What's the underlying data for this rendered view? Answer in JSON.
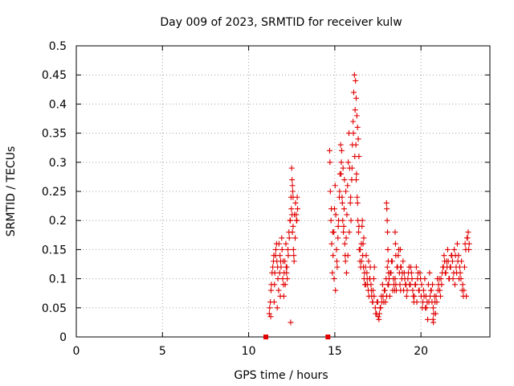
{
  "chart_data": {
    "type": "scatter",
    "title": "Day 009 of 2023, SRMTID for receiver kulw",
    "xlabel": "GPS time / hours",
    "ylabel": "SRMTID / TECUs",
    "xlim": [
      0,
      24
    ],
    "ylim": [
      0,
      0.5
    ],
    "xticks": [
      0,
      5,
      10,
      15,
      20
    ],
    "xtick_labels": [
      "0",
      "5",
      "10",
      "15",
      "20"
    ],
    "yticks": [
      0,
      0.05,
      0.1,
      0.15,
      0.2,
      0.25,
      0.3,
      0.35,
      0.4,
      0.45,
      0.5
    ],
    "ytick_labels": [
      "0",
      "0.05",
      "0.1",
      "0.15",
      "0.2",
      "0.25",
      "0.3",
      "0.35",
      "0.4",
      "0.45",
      "0.5"
    ],
    "grid": true,
    "marker": "plus",
    "color": "#e00000",
    "gap_markers": [
      [
        11.0,
        0.0
      ],
      [
        14.6,
        0.0
      ]
    ],
    "series": [
      {
        "name": "SRMTID",
        "x": [
          11.2,
          11.26,
          11.32,
          11.4,
          11.46,
          11.52,
          11.58,
          11.64,
          11.7,
          11.76,
          11.82,
          11.88,
          11.94,
          12.0,
          12.06,
          12.12,
          12.18,
          12.24,
          12.3,
          12.36,
          12.42,
          12.48,
          12.54,
          12.6,
          12.66,
          12.72,
          12.78,
          12.84,
          11.22,
          11.3,
          11.36,
          11.44,
          11.5,
          11.56,
          11.62,
          11.68,
          11.74,
          11.8,
          11.86,
          11.92,
          11.98,
          12.04,
          12.1,
          12.16,
          12.22,
          12.28,
          12.34,
          12.4,
          12.46,
          12.52,
          12.58,
          12.64,
          12.7,
          12.76,
          12.82,
          11.28,
          11.48,
          11.66,
          11.84,
          12.02,
          12.2,
          12.44,
          12.62,
          12.8,
          14.7,
          14.74,
          14.78,
          14.82,
          14.86,
          14.9,
          14.94,
          14.98,
          15.02,
          15.06,
          15.1,
          15.14,
          15.18,
          15.22,
          15.26,
          15.3,
          15.34,
          15.38,
          15.42,
          15.46,
          15.5,
          15.54,
          15.58,
          15.62,
          15.66,
          15.7,
          15.74,
          15.78,
          15.82,
          15.86,
          15.9,
          15.94,
          15.98,
          16.02,
          16.06,
          16.1,
          16.14,
          16.18,
          16.22,
          16.26,
          16.3,
          16.34,
          16.38,
          16.42,
          16.46,
          16.5,
          16.54,
          16.58,
          16.62,
          16.66,
          16.7,
          16.74,
          16.78,
          16.82,
          16.86,
          16.9,
          16.94,
          16.98,
          17.02,
          17.06,
          17.1,
          17.14,
          17.18,
          17.22,
          17.26,
          17.3,
          14.72,
          14.8,
          14.88,
          14.96,
          15.04,
          15.12,
          15.2,
          15.28,
          15.36,
          15.44,
          15.52,
          15.6,
          15.68,
          15.76,
          15.84,
          15.92,
          16.0,
          16.08,
          16.16,
          16.24,
          16.32,
          16.4,
          16.48,
          16.56,
          16.64,
          16.72,
          16.8,
          16.88,
          16.96,
          17.04,
          17.12,
          17.2,
          17.28,
          16.2,
          16.24,
          16.28,
          16.32,
          16.36,
          16.4,
          15.4,
          15.48,
          15.56,
          15.64,
          16.6,
          16.68,
          17.35,
          17.42,
          17.49,
          17.56,
          17.63,
          17.7,
          17.77,
          17.84,
          17.91,
          17.98,
          18.05,
          18.12,
          18.19,
          18.26,
          18.33,
          18.4,
          18.47,
          18.54,
          18.61,
          18.68,
          18.75,
          18.82,
          18.89,
          18.96,
          19.03,
          19.1,
          19.17,
          19.24,
          19.31,
          19.38,
          19.45,
          19.52,
          19.59,
          19.66,
          19.73,
          19.8,
          19.87,
          19.94,
          20.01,
          20.08,
          20.15,
          20.22,
          20.29,
          20.36,
          20.43,
          20.5,
          20.57,
          20.64,
          20.71,
          20.78,
          20.85,
          20.92,
          20.99,
          21.06,
          21.13,
          21.2,
          21.27,
          21.34,
          21.41,
          21.48,
          21.55,
          21.62,
          21.69,
          21.76,
          21.83,
          21.9,
          21.97,
          22.04,
          22.11,
          22.18,
          22.25,
          22.32,
          22.39,
          22.46,
          22.53,
          22.6,
          22.67,
          22.74,
          22.8,
          17.38,
          17.52,
          17.66,
          17.8,
          17.94,
          18.08,
          18.22,
          18.36,
          18.5,
          18.64,
          18.78,
          18.92,
          19.06,
          19.2,
          19.34,
          19.48,
          19.62,
          19.76,
          19.9,
          20.04,
          20.18,
          20.32,
          20.46,
          20.6,
          20.74,
          20.88,
          21.02,
          21.16,
          21.3,
          21.44,
          21.58,
          21.72,
          21.86,
          22.0,
          22.14,
          22.28,
          22.42,
          22.56,
          22.7,
          17.45,
          17.59,
          17.73,
          17.87,
          18.01,
          18.15,
          18.29,
          18.43,
          18.57,
          18.71,
          18.85,
          18.99,
          19.13,
          19.27,
          19.41,
          19.55,
          19.69,
          19.83,
          19.97,
          20.11,
          20.25,
          20.39,
          20.53,
          20.67,
          20.81,
          20.95,
          21.09,
          21.23,
          21.37,
          21.51,
          21.65,
          21.79,
          21.93,
          22.07,
          22.21,
          22.35,
          22.49,
          22.63,
          22.77,
          18.0,
          18.02,
          18.04,
          18.06,
          18.08,
          18.1,
          18.12,
          18.5,
          18.52,
          18.54,
          18.8,
          18.82,
          20.7,
          20.72,
          20.74,
          12.5,
          12.52,
          12.54,
          12.56,
          12.58
        ],
        "y": [
          0.04,
          0.06,
          0.09,
          0.12,
          0.14,
          0.11,
          0.15,
          0.13,
          0.1,
          0.16,
          0.14,
          0.12,
          0.15,
          0.13,
          0.11,
          0.09,
          0.12,
          0.1,
          0.14,
          0.17,
          0.2,
          0.22,
          0.18,
          0.15,
          0.21,
          0.23,
          0.2,
          0.22,
          0.05,
          0.08,
          0.11,
          0.13,
          0.09,
          0.14,
          0.16,
          0.12,
          0.08,
          0.11,
          0.13,
          0.17,
          0.1,
          0.07,
          0.13,
          0.16,
          0.12,
          0.15,
          0.18,
          0.2,
          0.24,
          0.21,
          0.19,
          0.13,
          0.17,
          0.21,
          0.24,
          0.035,
          0.06,
          0.05,
          0.07,
          0.09,
          0.11,
          0.025,
          0.14,
          0.2,
          0.32,
          0.25,
          0.2,
          0.16,
          0.11,
          0.14,
          0.18,
          0.22,
          0.26,
          0.21,
          0.15,
          0.12,
          0.17,
          0.2,
          0.24,
          0.28,
          0.33,
          0.3,
          0.24,
          0.2,
          0.18,
          0.22,
          0.16,
          0.13,
          0.17,
          0.21,
          0.26,
          0.3,
          0.35,
          0.29,
          0.23,
          0.2,
          0.27,
          0.33,
          0.37,
          0.42,
          0.45,
          0.39,
          0.33,
          0.28,
          0.24,
          0.2,
          0.18,
          0.15,
          0.13,
          0.12,
          0.16,
          0.19,
          0.14,
          0.12,
          0.1,
          0.09,
          0.12,
          0.14,
          0.11,
          0.09,
          0.08,
          0.07,
          0.1,
          0.12,
          0.09,
          0.07,
          0.06,
          0.08,
          0.1,
          0.12,
          0.3,
          0.22,
          0.18,
          0.1,
          0.08,
          0.13,
          0.19,
          0.25,
          0.28,
          0.23,
          0.19,
          0.14,
          0.11,
          0.14,
          0.18,
          0.24,
          0.29,
          0.35,
          0.31,
          0.27,
          0.23,
          0.19,
          0.15,
          0.13,
          0.16,
          0.11,
          0.09,
          0.1,
          0.13,
          0.1,
          0.08,
          0.06,
          0.07,
          0.44,
          0.41,
          0.38,
          0.36,
          0.34,
          0.31,
          0.32,
          0.29,
          0.27,
          0.25,
          0.2,
          0.17,
          0.05,
          0.04,
          0.06,
          0.03,
          0.05,
          0.07,
          0.09,
          0.06,
          0.08,
          0.1,
          0.12,
          0.09,
          0.07,
          0.11,
          0.13,
          0.1,
          0.08,
          0.09,
          0.12,
          0.14,
          0.11,
          0.08,
          0.1,
          0.13,
          0.11,
          0.09,
          0.07,
          0.1,
          0.12,
          0.09,
          0.11,
          0.08,
          0.06,
          0.09,
          0.12,
          0.1,
          0.08,
          0.11,
          0.07,
          0.05,
          0.08,
          0.1,
          0.07,
          0.06,
          0.09,
          0.11,
          0.08,
          0.06,
          0.05,
          0.07,
          0.04,
          0.06,
          0.08,
          0.1,
          0.07,
          0.09,
          0.12,
          0.14,
          0.11,
          0.13,
          0.15,
          0.1,
          0.12,
          0.14,
          0.13,
          0.11,
          0.09,
          0.12,
          0.16,
          0.14,
          0.12,
          0.1,
          0.08,
          0.07,
          0.12,
          0.15,
          0.17,
          0.18,
          0.16,
          0.04,
          0.035,
          0.05,
          0.07,
          0.06,
          0.09,
          0.11,
          0.08,
          0.1,
          0.12,
          0.09,
          0.11,
          0.1,
          0.08,
          0.09,
          0.1,
          0.07,
          0.06,
          0.08,
          0.09,
          0.07,
          0.05,
          0.06,
          0.08,
          0.04,
          0.07,
          0.09,
          0.1,
          0.12,
          0.11,
          0.13,
          0.12,
          0.1,
          0.14,
          0.13,
          0.11,
          0.09,
          0.16,
          0.17,
          0.06,
          0.04,
          0.06,
          0.08,
          0.07,
          0.1,
          0.13,
          0.09,
          0.08,
          0.15,
          0.12,
          0.08,
          0.09,
          0.11,
          0.12,
          0.07,
          0.09,
          0.11,
          0.1,
          0.06,
          0.05,
          0.03,
          0.07,
          0.09,
          0.06,
          0.1,
          0.08,
          0.11,
          0.13,
          0.12,
          0.1,
          0.14,
          0.15,
          0.11,
          0.1,
          0.13,
          0.08,
          0.07,
          0.15,
          0.23,
          0.22,
          0.2,
          0.18,
          0.15,
          0.13,
          0.11,
          0.18,
          0.16,
          0.14,
          0.15,
          0.12,
          0.03,
          0.025,
          0.04,
          0.29,
          0.27,
          0.26,
          0.25,
          0.24
        ]
      }
    ]
  }
}
